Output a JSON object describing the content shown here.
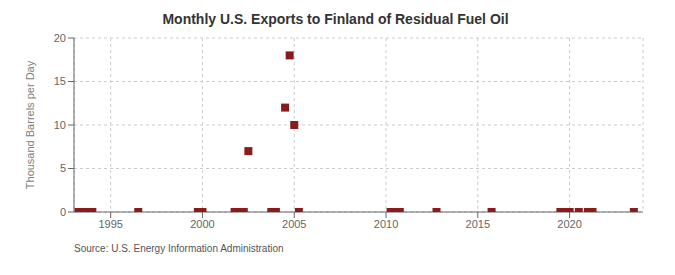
{
  "chart_data": {
    "type": "scatter",
    "title": "Monthly U.S. Exports to Finland of Residual Fuel Oil",
    "y_label": "Thousand Barrels per Day",
    "annotations": [
      "Source: U.S. Energy Information Administration"
    ],
    "color": "#8b1a1a",
    "marker": "square",
    "grid": true,
    "xlim": [
      1993,
      2024
    ],
    "ylim": [
      0,
      20
    ],
    "xticks": [
      1995,
      2000,
      2005,
      2010,
      2015,
      2020
    ],
    "yticks": [
      0,
      5,
      10,
      15,
      20
    ],
    "x": [
      1993.25,
      1993.5,
      1993.75,
      1994.0,
      1996.5,
      1999.75,
      2000.0,
      2001.75,
      2002.0,
      2002.25,
      2002.5,
      2003.75,
      2004.0,
      2004.5,
      2004.75,
      2005.0,
      2005.25,
      2010.25,
      2010.5,
      2010.75,
      2012.75,
      2015.75,
      2019.5,
      2019.75,
      2020.0,
      2020.5,
      2021.0,
      2021.25,
      2023.5
    ],
    "values": [
      0.0,
      0.0,
      0.0,
      0.0,
      0.0,
      0.0,
      0.0,
      0.0,
      0.0,
      0.0,
      7.0,
      0.0,
      0.0,
      12.0,
      18.0,
      10.0,
      0.0,
      0.0,
      0.0,
      0.0,
      0.0,
      0.0,
      0.0,
      0.0,
      0.0,
      0.0,
      0.0,
      0.0,
      0.0
    ]
  }
}
